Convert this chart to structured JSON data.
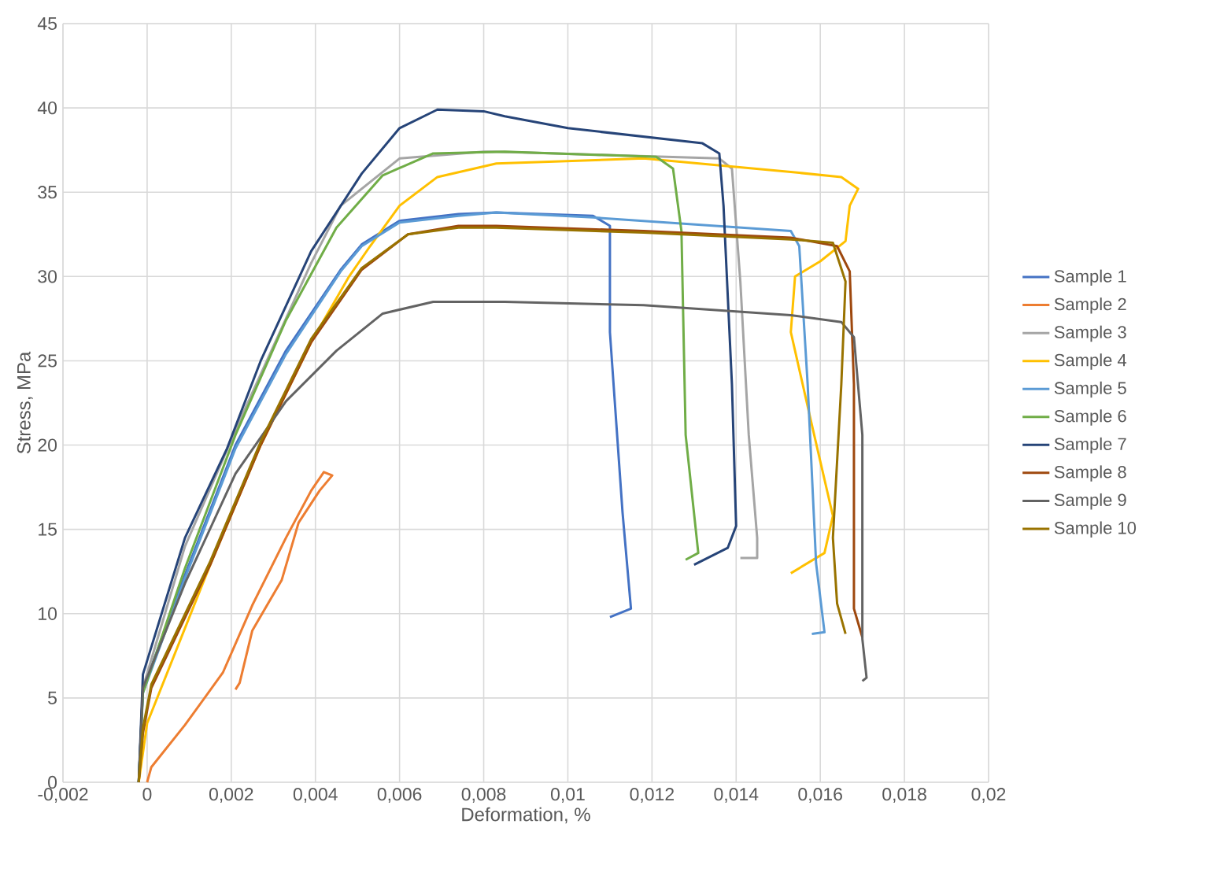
{
  "chart_data": {
    "type": "line",
    "xlabel": "Deformation, %",
    "ylabel": "Stress, MPa",
    "xlim": [
      -0.002,
      0.02
    ],
    "ylim": [
      0,
      45
    ],
    "xticks": [
      {
        "value": -0.002,
        "label": "-0,002"
      },
      {
        "value": 0,
        "label": "0"
      },
      {
        "value": 0.002,
        "label": "0,002"
      },
      {
        "value": 0.004,
        "label": "0,004"
      },
      {
        "value": 0.006,
        "label": "0,006"
      },
      {
        "value": 0.008,
        "label": "0,008"
      },
      {
        "value": 0.01,
        "label": "0,01"
      },
      {
        "value": 0.012,
        "label": "0,012"
      },
      {
        "value": 0.014,
        "label": "0,014"
      },
      {
        "value": 0.016,
        "label": "0,016"
      },
      {
        "value": 0.018,
        "label": "0,018"
      },
      {
        "value": 0.02,
        "label": "0,02"
      }
    ],
    "yticks": [
      0,
      5,
      10,
      15,
      20,
      25,
      30,
      35,
      40,
      45
    ],
    "grid": true,
    "legend": "right",
    "marker": "none",
    "line_style": "solid",
    "series": [
      {
        "name": "Sample 1",
        "color": "#4472c4",
        "x": [
          -0.0002,
          -0.0001,
          0.0009,
          0.0021,
          0.0033,
          0.0046,
          0.0051,
          0.006,
          0.0074,
          0.0083,
          0.0106,
          0.011,
          0.011,
          0.0113,
          0.0115,
          0.011
        ],
        "values": [
          0,
          5.5,
          12.3,
          20,
          25.6,
          30.4,
          31.9,
          33.3,
          33.7,
          33.8,
          33.6,
          33,
          26.7,
          16,
          10.3,
          9.8
        ]
      },
      {
        "name": "Sample 2",
        "color": "#ed7d31",
        "x": [
          0,
          0.0001,
          0.0009,
          0.0018,
          0.0025,
          0.0033,
          0.0039,
          0.0042,
          0.0044,
          0.0041,
          0.0036,
          0.0032,
          0.0025,
          0.0022,
          0.0021
        ],
        "values": [
          0,
          0.9,
          3.4,
          6.5,
          10.5,
          14.5,
          17.3,
          18.4,
          18.2,
          17.3,
          15.4,
          12,
          9,
          5.9,
          5.5
        ]
      },
      {
        "name": "Sample 3",
        "color": "#a5a5a5",
        "x": [
          -0.0002,
          -0.0001,
          0.0009,
          0.0023,
          0.0039,
          0.0046,
          0.006,
          0.008,
          0.0083,
          0.0136,
          0.0139,
          0.0141,
          0.0143,
          0.0145,
          0.0145,
          0.0141
        ],
        "values": [
          0,
          5.6,
          14,
          22,
          30.8,
          34.2,
          37,
          37.4,
          37.4,
          37,
          36.4,
          29.7,
          20.6,
          14.5,
          13.3,
          13.3
        ]
      },
      {
        "name": "Sample 4",
        "color": "#ffc000",
        "x": [
          -0.0002,
          0,
          0.0015,
          0.0027,
          0.0039,
          0.0048,
          0.0053,
          0.006,
          0.0069,
          0.0083,
          0.0118,
          0.0153,
          0.0165,
          0.0169,
          0.0167,
          0.0166,
          0.016,
          0.0154,
          0.0153,
          0.0158,
          0.0163,
          0.0161,
          0.0153
        ],
        "values": [
          0,
          3.5,
          12.9,
          20,
          26.1,
          30,
          31.8,
          34.2,
          35.9,
          36.7,
          37,
          36.2,
          35.9,
          35.2,
          34.2,
          32.1,
          30.9,
          30,
          26.7,
          21.2,
          15.8,
          13.6,
          12.4
        ]
      },
      {
        "name": "Sample 5",
        "color": "#5b9bd5",
        "x": [
          -0.0002,
          -0.0001,
          0.0009,
          0.0021,
          0.0033,
          0.0046,
          0.0051,
          0.006,
          0.0074,
          0.0083,
          0.0106,
          0.0153,
          0.0155,
          0.0157,
          0.0159,
          0.0161,
          0.0158
        ],
        "values": [
          0,
          5.3,
          12.1,
          19.8,
          25.4,
          30.3,
          31.8,
          33.2,
          33.6,
          33.8,
          33.5,
          32.7,
          31.8,
          23.6,
          13,
          8.9,
          8.8
        ]
      },
      {
        "name": "Sample 6",
        "color": "#70ad47",
        "x": [
          -0.0002,
          -0.0001,
          0.0009,
          0.0021,
          0.0033,
          0.0045,
          0.0056,
          0.0068,
          0.0085,
          0.0121,
          0.0125,
          0.0127,
          0.0128,
          0.0131,
          0.0128
        ],
        "values": [
          0,
          5.3,
          12.7,
          20.6,
          27.4,
          32.9,
          36,
          37.3,
          37.4,
          37.1,
          36.4,
          32.7,
          20.6,
          13.6,
          13.2
        ]
      },
      {
        "name": "Sample 7",
        "color": "#264478",
        "x": [
          -0.0002,
          -0.0001,
          0.0009,
          0.0019,
          0.0027,
          0.0039,
          0.0051,
          0.006,
          0.0069,
          0.008,
          0.0085,
          0.01,
          0.0132,
          0.0136,
          0.0137,
          0.0139,
          0.014,
          0.0138,
          0.013
        ],
        "values": [
          0,
          6.4,
          14.5,
          19.8,
          25,
          31.5,
          36.1,
          38.8,
          39.9,
          39.8,
          39.5,
          38.8,
          37.9,
          37.3,
          34.2,
          23.6,
          15.2,
          13.9,
          12.9
        ]
      },
      {
        "name": "Sample 8",
        "color": "#9e480e",
        "x": [
          -0.0002,
          -0.0001,
          0.0001,
          0.0015,
          0.0027,
          0.0039,
          0.0051,
          0.0062,
          0.0074,
          0.0083,
          0.0118,
          0.0153,
          0.0164,
          0.0167,
          0.0168,
          0.0168,
          0.017
        ],
        "values": [
          0,
          2.9,
          5.6,
          12.9,
          20,
          26.1,
          30.4,
          32.5,
          33,
          33,
          32.7,
          32.3,
          31.8,
          30.3,
          23.6,
          10.3,
          8.6
        ]
      },
      {
        "name": "Sample 9",
        "color": "#636363",
        "x": [
          -0.0002,
          -0.0001,
          0.0009,
          0.0021,
          0.0033,
          0.0045,
          0.0056,
          0.0068,
          0.0085,
          0.0118,
          0.0153,
          0.0165,
          0.0168,
          0.017,
          0.017,
          0.0171,
          0.017
        ],
        "values": [
          0,
          5.6,
          11.8,
          18.3,
          22.6,
          25.6,
          27.8,
          28.5,
          28.5,
          28.3,
          27.7,
          27.3,
          26.4,
          20.6,
          8.5,
          6.2,
          6
        ]
      },
      {
        "name": "Sample 10",
        "color": "#997300",
        "x": [
          -0.0002,
          -0.0001,
          0.0001,
          0.0015,
          0.0027,
          0.0039,
          0.0051,
          0.0062,
          0.0074,
          0.0083,
          0.0118,
          0.0153,
          0.0163,
          0.0166,
          0.0165,
          0.0163,
          0.0164,
          0.0166
        ],
        "values": [
          0,
          3.2,
          5.8,
          13.1,
          20.2,
          26.3,
          30.5,
          32.5,
          32.9,
          32.9,
          32.6,
          32.2,
          32,
          29.7,
          23.6,
          14.5,
          10.6,
          8.8
        ]
      }
    ]
  }
}
